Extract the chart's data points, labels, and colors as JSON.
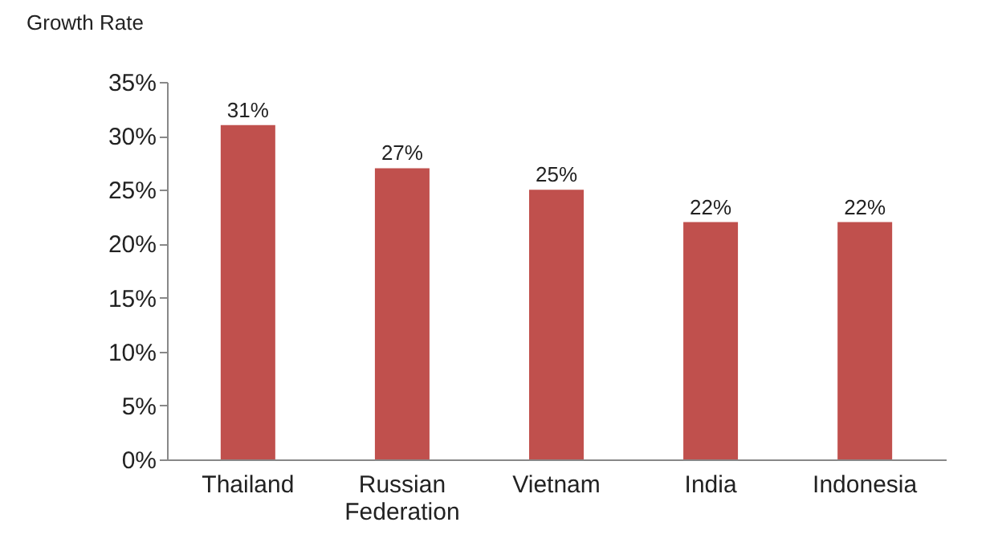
{
  "chart_data": {
    "type": "bar",
    "ylabel": "Growth Rate",
    "categories": [
      "Thailand",
      "Russian Federation",
      "Vietnam",
      "India",
      "Indonesia"
    ],
    "values": [
      31,
      27,
      25,
      22,
      22
    ],
    "value_labels": [
      "31%",
      "27%",
      "25%",
      "22%",
      "22%"
    ],
    "color": "#c0504d",
    "ylim": [
      0,
      35
    ],
    "yticks": [
      {
        "value": 0,
        "label": "0%"
      },
      {
        "value": 5,
        "label": "5%"
      },
      {
        "value": 10,
        "label": "10%"
      },
      {
        "value": 15,
        "label": "15%"
      },
      {
        "value": 20,
        "label": "20%"
      },
      {
        "value": 25,
        "label": "25%"
      },
      {
        "value": 30,
        "label": "30%"
      },
      {
        "value": 35,
        "label": "35%"
      }
    ],
    "grid": false
  }
}
